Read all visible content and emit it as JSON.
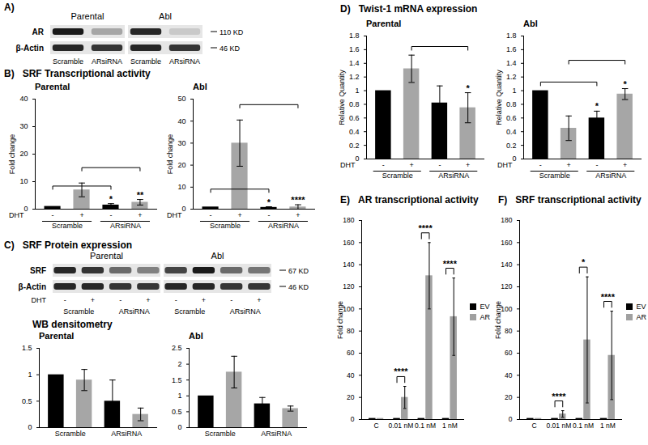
{
  "headings": [
    {
      "label": "A)"
    },
    {
      "label": "B)",
      "text": "SRF Transcriptional activity"
    },
    {
      "label": "C)",
      "text": "SRF Protein expression"
    },
    {
      "text": "WB densitometry"
    },
    {
      "label": "D)",
      "text": "Twist-1 mRNA expression"
    },
    {
      "label": "E)",
      "text": "AR transcriptional activity"
    },
    {
      "label": "F)",
      "text": "SRF transcriptional activity"
    }
  ],
  "blots": [
    {
      "groups": [
        "Parental",
        "Abl"
      ],
      "lanes": [
        "Scramble",
        "ARsiRNA"
      ],
      "rows": [
        {
          "name": "AR",
          "size": "110 KD",
          "intensity": [
            0.9,
            0.35,
            0.85,
            0.2
          ]
        },
        {
          "name": "β-Actin",
          "size": "46 KD",
          "intensity": [
            0.85,
            0.8,
            0.85,
            0.8
          ]
        }
      ]
    },
    {
      "groups": [
        "Parental",
        "Abl"
      ],
      "lanes": [
        "-",
        "+",
        "-",
        "+"
      ],
      "lane_groups": [
        "Scramble",
        "ARsiRNA"
      ],
      "xlabel": "DHT",
      "rows": [
        {
          "name": "SRF",
          "size": "67 KD",
          "intensity": [
            0.85,
            0.8,
            0.6,
            0.5,
            0.75,
            0.9,
            0.6,
            0.55
          ]
        },
        {
          "name": "β-Actin",
          "size": "46 KD",
          "intensity": [
            0.85,
            0.85,
            0.8,
            0.8,
            0.85,
            0.85,
            0.8,
            0.8
          ]
        }
      ]
    }
  ],
  "chart_data": [
    {
      "type": "bar",
      "title": "Parental",
      "ylabel": "Fold change",
      "xlabel": "DHT",
      "categories": [
        "-",
        "+",
        "-",
        "+"
      ],
      "groups": [
        "Scramble",
        "ARsiRNA"
      ],
      "values": [
        1,
        7,
        1.5,
        2.5
      ],
      "errors": [
        null,
        2.5,
        0.5,
        1
      ],
      "colors": [
        "#000000",
        "#a6a6a6",
        "#000000",
        "#a6a6a6"
      ],
      "annotations": [
        null,
        null,
        "*",
        "**"
      ],
      "brackets": [
        {
          "from": 0,
          "to": 2
        },
        {
          "from": 1,
          "to": 3
        }
      ],
      "ylim": [
        0,
        40
      ],
      "yticks": [
        0,
        10,
        20,
        30,
        40
      ]
    },
    {
      "type": "bar",
      "title": "Abl",
      "ylabel": "Fold change",
      "xlabel": "DHT",
      "categories": [
        "-",
        "+",
        "-",
        "+"
      ],
      "groups": [
        "Scramble",
        "ARsiRNA"
      ],
      "values": [
        1,
        30,
        0.8,
        1
      ],
      "errors": [
        null,
        10.5,
        0.3,
        1
      ],
      "colors": [
        "#000000",
        "#a6a6a6",
        "#000000",
        "#a6a6a6"
      ],
      "annotations": [
        null,
        null,
        "*",
        "****"
      ],
      "brackets": [
        {
          "from": 0,
          "to": 2
        },
        {
          "from": 1,
          "to": 3
        }
      ],
      "ylim": [
        0,
        50
      ],
      "yticks": [
        0,
        10,
        20,
        30,
        40,
        50
      ]
    },
    {
      "type": "bar",
      "title": "Parental",
      "categories": [
        null,
        null,
        null,
        null
      ],
      "groups": [
        "Scramble",
        "ARsiRNA"
      ],
      "values": [
        1,
        0.9,
        0.5,
        0.25
      ],
      "errors": [
        null,
        0.2,
        0.4,
        0.12
      ],
      "colors": [
        "#000000",
        "#a6a6a6",
        "#000000",
        "#a6a6a6"
      ],
      "ylim": [
        0,
        1.5
      ],
      "yticks": [
        0,
        0.5,
        1,
        1.5
      ]
    },
    {
      "type": "bar",
      "title": "Abl",
      "categories": [
        null,
        null,
        null,
        null
      ],
      "groups": [
        "Scramble",
        "ARsiRNA"
      ],
      "values": [
        1,
        1.75,
        0.75,
        0.6
      ],
      "errors": [
        null,
        0.5,
        0.2,
        0.08
      ],
      "colors": [
        "#000000",
        "#a6a6a6",
        "#000000",
        "#a6a6a6"
      ],
      "ylim": [
        0,
        2.5
      ],
      "yticks": [
        0,
        0.5,
        1,
        1.5,
        2,
        2.5
      ]
    },
    {
      "type": "bar",
      "title": "Parental",
      "ylabel": "Relative Quantity",
      "xlabel": "DHT",
      "categories": [
        "-",
        "+",
        "-",
        "+"
      ],
      "groups": [
        "Scramble",
        "ARsiRNA"
      ],
      "values": [
        1,
        1.32,
        0.82,
        0.75
      ],
      "errors": [
        null,
        0.2,
        0.25,
        0.22
      ],
      "colors": [
        "#000000",
        "#a6a6a6",
        "#000000",
        "#a6a6a6"
      ],
      "annotations": [
        null,
        null,
        null,
        "*"
      ],
      "brackets": [
        {
          "from": 1,
          "to": 3
        }
      ],
      "ylim": [
        0,
        1.8
      ],
      "yticks": [
        0,
        0.2,
        0.4,
        0.6,
        0.8,
        1,
        1.2,
        1.4,
        1.6,
        1.8
      ]
    },
    {
      "type": "bar",
      "title": "Abl",
      "ylabel": "Relative Quantity",
      "xlabel": "DHT",
      "categories": [
        "-",
        "+",
        "-",
        "+"
      ],
      "groups": [
        "Scramble",
        "ARsiRNA"
      ],
      "values": [
        1,
        0.45,
        0.6,
        0.95
      ],
      "errors": [
        null,
        0.18,
        0.1,
        0.08
      ],
      "colors": [
        "#000000",
        "#a6a6a6",
        "#000000",
        "#a6a6a6"
      ],
      "annotations": [
        null,
        null,
        "*",
        "*"
      ],
      "brackets": [
        {
          "from": 0,
          "to": 2
        },
        {
          "from": 1,
          "to": 3
        }
      ],
      "ylim": [
        0,
        1.8
      ],
      "yticks": [
        0,
        0.2,
        0.4,
        0.6,
        0.8,
        1,
        1.2,
        1.4,
        1.6,
        1.8
      ]
    },
    {
      "type": "bar",
      "ylabel": "Fold change",
      "categories": [
        "C",
        "0.01 nM",
        "0.1 nM",
        "1 nM"
      ],
      "series": [
        {
          "name": "EV",
          "color": "#000000",
          "values": [
            1,
            1,
            1,
            1
          ]
        },
        {
          "name": "AR",
          "color": "#a0a0a0",
          "values": [
            1,
            20,
            130,
            93
          ],
          "errors": [
            null,
            10,
            30,
            35
          ]
        }
      ],
      "annotations": [
        null,
        "****",
        "****",
        "****"
      ],
      "legend": "right",
      "ylim": [
        0,
        180
      ],
      "yticks": [
        0,
        20,
        40,
        60,
        80,
        100,
        120,
        140,
        160,
        180
      ]
    },
    {
      "type": "bar",
      "ylabel": "Fold change",
      "categories": [
        "C",
        "0.01 nM",
        "0.1 nM",
        "1 nM"
      ],
      "series": [
        {
          "name": "EV",
          "color": "#000000",
          "values": [
            1,
            1,
            1,
            1
          ]
        },
        {
          "name": "AR",
          "color": "#a0a0a0",
          "values": [
            1,
            5,
            72,
            58
          ],
          "errors": [
            null,
            3,
            57,
            40
          ]
        }
      ],
      "annotations": [
        null,
        "****",
        "*",
        "****"
      ],
      "legend": "right",
      "ylim": [
        0,
        180
      ],
      "yticks": [
        0,
        20,
        40,
        60,
        80,
        100,
        120,
        140,
        160,
        180
      ]
    }
  ]
}
